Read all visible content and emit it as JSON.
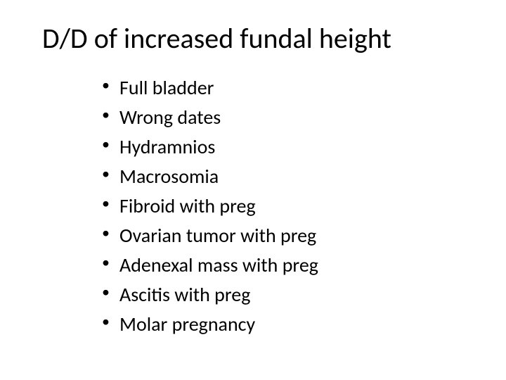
{
  "slide": {
    "title": "D/D of increased fundal height",
    "title_fontsize": 40,
    "title_color": "#000000",
    "background_color": "#ffffff",
    "bullets": [
      "Full bladder",
      "Wrong dates",
      "Hydramnios",
      "Macrosomia",
      "Fibroid with preg",
      "Ovarian tumor with preg",
      "Adenexal mass with preg",
      "Ascitis with preg",
      "Molar pregnancy"
    ],
    "bullet_fontsize": 28,
    "bullet_color": "#000000",
    "font_family": "Calibri"
  }
}
